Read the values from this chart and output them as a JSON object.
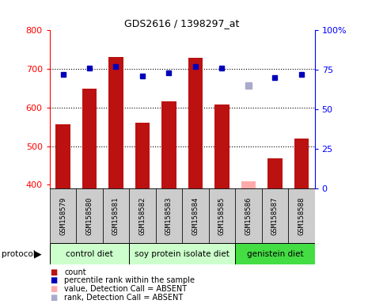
{
  "title": "GDS2616 / 1398297_at",
  "samples": [
    "GSM158579",
    "GSM158580",
    "GSM158581",
    "GSM158582",
    "GSM158583",
    "GSM158584",
    "GSM158585",
    "GSM158586",
    "GSM158587",
    "GSM158588"
  ],
  "count_values": [
    557,
    648,
    732,
    560,
    615,
    728,
    608,
    408,
    468,
    520
  ],
  "count_absent": [
    false,
    false,
    false,
    false,
    false,
    false,
    false,
    true,
    false,
    false
  ],
  "percentile_values": [
    72,
    76,
    77,
    71,
    73,
    77,
    76,
    null,
    70,
    72
  ],
  "rank_absent_values": [
    null,
    null,
    null,
    null,
    null,
    null,
    null,
    65,
    null,
    null
  ],
  "ylim_left": [
    390,
    800
  ],
  "ylim_right": [
    0,
    100
  ],
  "yticks_left": [
    400,
    500,
    600,
    700,
    800
  ],
  "yticks_right": [
    0,
    25,
    50,
    75,
    100
  ],
  "bar_color": "#bb1111",
  "bar_absent_color": "#ffaaaa",
  "dot_color": "#0000bb",
  "rank_absent_color": "#aaaacc",
  "grid_color": "#000000",
  "sample_bg_color": "#cccccc",
  "group_defs": [
    {
      "start": 0,
      "end": 2,
      "label": "control diet",
      "color": "#ccffcc"
    },
    {
      "start": 3,
      "end": 6,
      "label": "soy protein isolate diet",
      "color": "#ccffcc"
    },
    {
      "start": 7,
      "end": 9,
      "label": "genistein diet",
      "color": "#44dd44"
    }
  ],
  "legend_items": [
    {
      "color": "#bb1111",
      "marker": "s",
      "label": "count"
    },
    {
      "color": "#0000bb",
      "marker": "s",
      "label": "percentile rank within the sample"
    },
    {
      "color": "#ffaaaa",
      "marker": "s",
      "label": "value, Detection Call = ABSENT"
    },
    {
      "color": "#aaaacc",
      "marker": "s",
      "label": "rank, Detection Call = ABSENT"
    }
  ]
}
